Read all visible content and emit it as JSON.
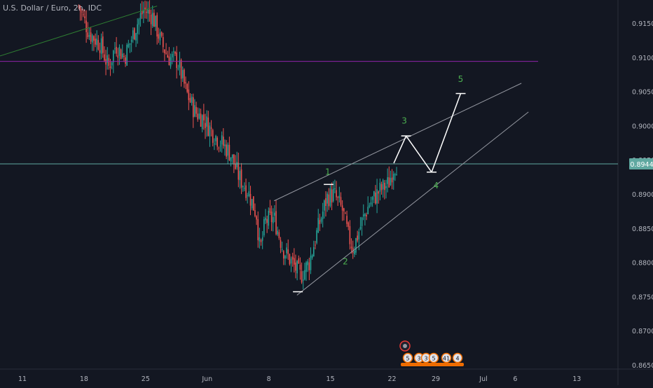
{
  "header": {
    "symbol_label": "U.S. Dollar / Euro, 2h, IDC"
  },
  "colors": {
    "background": "#131722",
    "text": "#b2b5be",
    "up_candle": "#26a69a",
    "down_candle": "#ef5350",
    "trend_line_green": "#2e7d32",
    "horizontal_purple": "#8e24aa",
    "price_line": "#5fa8a0",
    "price_badge": "#5fa8a0",
    "wave_label": "#4caf50",
    "wave_lines": "#ffffff"
  },
  "chart_data": {
    "type": "candlestick",
    "title": "U.S. Dollar / Euro, 2h, IDC",
    "y_range": [
      0.8645,
      0.9175
    ],
    "y_ticks": [
      "0.9150",
      "0.9100",
      "0.9050",
      "0.9000",
      "0.8950",
      "0.8900",
      "0.8850",
      "0.8800",
      "0.8750",
      "0.8700",
      "0.8650"
    ],
    "x_ticks": [
      "11",
      "18",
      "25",
      "Jun",
      "8",
      "15",
      "22",
      "29",
      "Jul",
      "6",
      "13"
    ],
    "current_price": "0.8944",
    "price_path": [
      [
        "May 17.4",
        0.9175
      ],
      [
        "May 18.6",
        0.9135
      ],
      [
        "May 19.8",
        0.912
      ],
      [
        "May 20.8",
        0.9085
      ],
      [
        "May 21.6",
        0.9118
      ],
      [
        "May 22.6",
        0.91
      ],
      [
        "May 24.0",
        0.9148
      ],
      [
        "May 24.8",
        0.917
      ],
      [
        "May 25.8",
        0.916
      ],
      [
        "May 26.8",
        0.912
      ],
      [
        "May 27.6",
        0.91
      ],
      [
        "May 28.6",
        0.9095
      ],
      [
        "May 29.6",
        0.905
      ],
      [
        "May 30.6",
        0.902
      ],
      [
        "May 31.6",
        0.901
      ],
      [
        "Jun 1.6",
        0.899
      ],
      [
        "Jun 2.6",
        0.8975
      ],
      [
        "Jun 3.6",
        0.896
      ],
      [
        "Jun 4.6",
        0.8925
      ],
      [
        "Jun 5.6",
        0.8905
      ],
      [
        "Jun 6.6",
        0.887
      ],
      [
        "Jun 7.0",
        0.8815
      ],
      [
        "Jun 7.6",
        0.886
      ],
      [
        "Jun 8.6",
        0.8865
      ],
      [
        "Jun 9.6",
        0.882
      ],
      [
        "Jun 10.6",
        0.88
      ],
      [
        "Jun 11.6",
        0.878
      ],
      [
        "Jun 12.6",
        0.88
      ],
      [
        "Jun 13.6",
        0.885
      ],
      [
        "Jun 14.6",
        0.8895
      ],
      [
        "Jun 15.4",
        0.89
      ],
      [
        "Jun 16.4",
        0.8875
      ],
      [
        "Jun 17.0",
        0.884
      ],
      [
        "Jun 17.6",
        0.882
      ],
      [
        "Jun 18.6",
        0.886
      ],
      [
        "Jun 19.4",
        0.8885
      ],
      [
        "Jun 20.6",
        0.8905
      ],
      [
        "Jun 21.6",
        0.8915
      ],
      [
        "Jun 22.2",
        0.894
      ],
      [
        "Jun 22.6",
        0.8944
      ]
    ],
    "lines": [
      {
        "name": "green-trend-line",
        "from": [
          "May 2.5",
          0.9102
        ],
        "to": [
          "May 26.3",
          0.9175
        ]
      },
      {
        "name": "purple-level-line",
        "from": [
          "May 2.5",
          0.9094
        ],
        "to": [
          "Jul 7.8",
          0.9094
        ]
      },
      {
        "name": "price-level-line",
        "from": [
          "May 2.5",
          0.8944
        ],
        "to": [
          "Jul 16.8",
          0.8944
        ]
      },
      {
        "name": "upper-channel-line",
        "from": [
          "Jun 8.6",
          0.889
        ],
        "to": [
          "Jul 6.7",
          0.9062
        ]
      },
      {
        "name": "lower-channel-line",
        "from": [
          "Jun 11.2",
          0.8752
        ],
        "to": [
          "Jul 7.5",
          0.902
        ]
      },
      {
        "name": "wave-projection-1",
        "from": [
          "Jun 22.2",
          0.8945
        ],
        "to": [
          "Jun 23.6",
          0.8985
        ]
      },
      {
        "name": "wave-projection-2",
        "from": [
          "Jun 23.6",
          0.8985
        ],
        "to": [
          "Jun 26.5",
          0.8932
        ]
      },
      {
        "name": "wave-projection-3",
        "from": [
          "Jun 26.5",
          0.8932
        ],
        "to": [
          "Jun 29.8",
          0.9047
        ]
      }
    ],
    "ticks_marks": [
      {
        "at": [
          "Jun 11.3",
          0.8757
        ]
      },
      {
        "at": [
          "Jun 14.8",
          0.8914
        ]
      },
      {
        "at": [
          "Jun 23.6",
          0.8985
        ]
      },
      {
        "at": [
          "Jun 26.5",
          0.8932
        ]
      },
      {
        "at": [
          "Jun 29.8",
          0.9047
        ]
      }
    ],
    "wave_labels": [
      {
        "text": "1",
        "at": [
          "Jun 14.7",
          0.8928
        ]
      },
      {
        "text": "2",
        "at": [
          "Jun 16.7",
          0.8797
        ]
      },
      {
        "text": "3",
        "at": [
          "Jun 23.4",
          0.9003
        ]
      },
      {
        "text": "4",
        "at": [
          "Jun 27.0",
          0.8908
        ]
      },
      {
        "text": "5",
        "at": [
          "Jun 29.8",
          0.9064
        ]
      }
    ]
  },
  "bottom_markers": {
    "event_numbers": [
      "5",
      "3",
      "3",
      "5",
      "41",
      "4"
    ]
  }
}
